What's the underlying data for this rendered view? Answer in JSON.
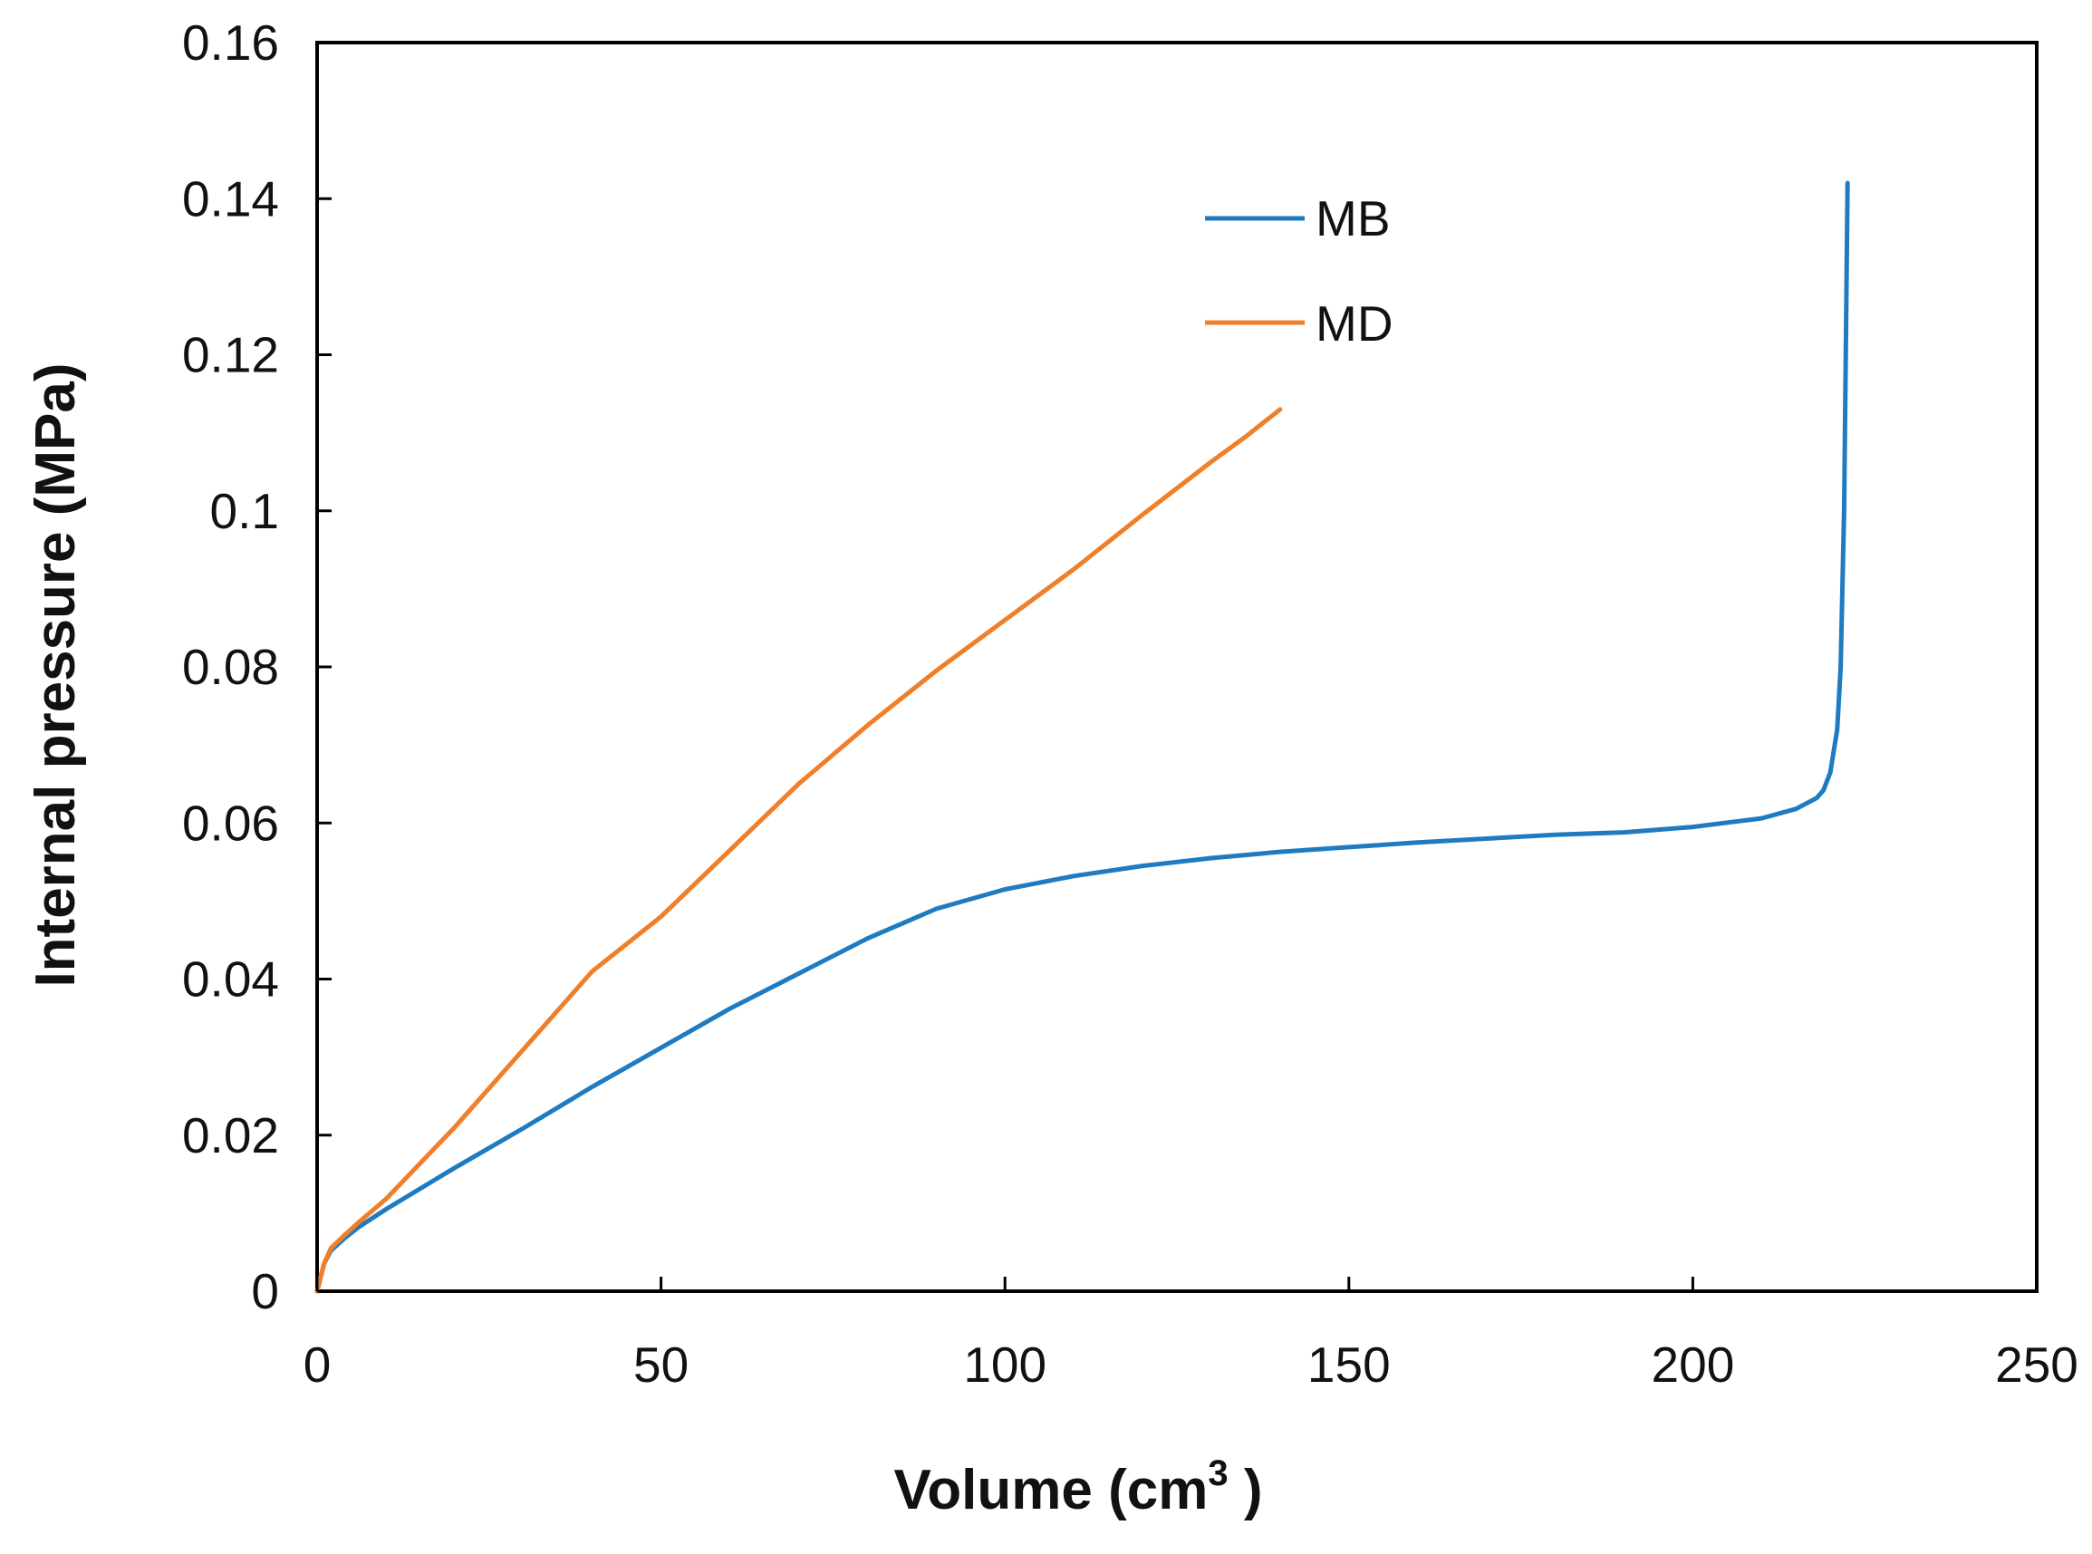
{
  "chart_data": {
    "type": "line",
    "title": "",
    "xlabel": "Volume (cm",
    "xlabel_superscript": "3",
    "xlabel_suffix": " )",
    "ylabel": "Internal pressure (MPa)",
    "xlim": [
      0,
      250
    ],
    "ylim": [
      0,
      0.16
    ],
    "xticks": [
      0,
      50,
      100,
      150,
      200,
      250
    ],
    "xtick_labels": [
      "0",
      "50",
      "100",
      "150",
      "200",
      "250"
    ],
    "yticks": [
      0,
      0.02,
      0.04,
      0.06,
      0.08,
      0.1,
      0.12,
      0.14,
      0.16
    ],
    "ytick_labels": [
      "0",
      "0.02",
      "0.04",
      "0.06",
      "0.08",
      "0.1",
      "0.12",
      "0.14",
      "0.16"
    ],
    "grid": false,
    "legend_position": "top-center",
    "series": [
      {
        "name": "MB",
        "color": "#1f7bc1",
        "x": [
          0,
          1,
          2,
          4,
          6,
          10,
          20,
          30,
          40,
          50,
          60,
          70,
          80,
          90,
          100,
          110,
          120,
          130,
          140,
          150,
          160,
          170,
          180,
          190,
          200,
          210,
          215,
          218,
          219,
          220,
          221,
          221.5,
          222,
          222.3,
          222.5
        ],
        "y": [
          0,
          0.0035,
          0.0052,
          0.0068,
          0.0082,
          0.0105,
          0.0158,
          0.0209,
          0.0262,
          0.0312,
          0.0362,
          0.0407,
          0.0452,
          0.049,
          0.0515,
          0.0532,
          0.0545,
          0.0555,
          0.0563,
          0.0569,
          0.0575,
          0.058,
          0.0585,
          0.0588,
          0.0595,
          0.0606,
          0.0618,
          0.0632,
          0.0642,
          0.0665,
          0.072,
          0.08,
          0.1,
          0.125,
          0.142
        ]
      },
      {
        "name": "MD",
        "color": "#f07f2a",
        "x": [
          0,
          1,
          2,
          4,
          6,
          10,
          20,
          30,
          40,
          50,
          60,
          70,
          80,
          90,
          100,
          110,
          120,
          130,
          135,
          140
        ],
        "y": [
          0,
          0.0035,
          0.0055,
          0.0072,
          0.0088,
          0.0118,
          0.021,
          0.031,
          0.041,
          0.048,
          0.0565,
          0.065,
          0.0725,
          0.0795,
          0.086,
          0.0925,
          0.0995,
          0.1063,
          0.1095,
          0.113
        ]
      }
    ]
  }
}
